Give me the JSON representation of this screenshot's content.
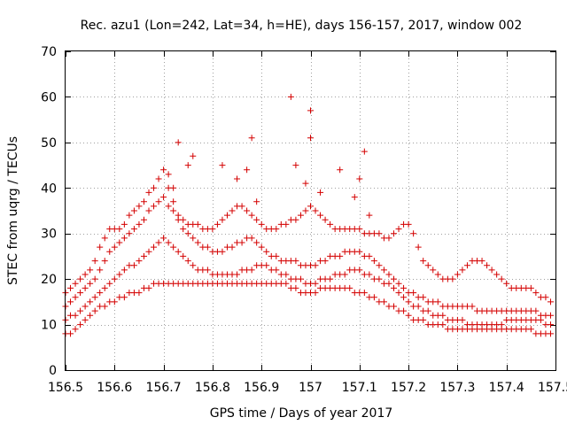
{
  "chart_data": {
    "type": "scatter",
    "title": "Rec. azu1 (Lon=242, Lat=34, h=HE), days 156-157, 2017, window 002",
    "xlabel": "GPS time / Days of year 2017",
    "ylabel": "STEC from uqrg / TECUs",
    "xlim": [
      156.5,
      157.5
    ],
    "ylim": [
      0,
      70
    ],
    "x_ticks": [
      156.5,
      156.6,
      156.7,
      156.8,
      156.9,
      157,
      157.1,
      157.2,
      157.3,
      157.4,
      157.5
    ],
    "x_tick_labels": [
      "156.5",
      "156.6",
      "156.7",
      "156.8",
      "156.9",
      "157",
      "157.1",
      "157.2",
      "157.3",
      "157.4",
      "157.5"
    ],
    "y_ticks": [
      0,
      10,
      20,
      30,
      40,
      50,
      60,
      70
    ],
    "y_tick_labels": [
      "0",
      "10",
      "20",
      "30",
      "40",
      "50",
      "60",
      "70"
    ],
    "grid": true,
    "marker": "plus",
    "color": "#d40000",
    "series": [
      {
        "x": [
          156.5,
          156.51,
          156.52,
          156.53,
          156.54,
          156.55,
          156.56,
          156.57,
          156.58,
          156.59,
          156.6,
          156.61,
          156.62,
          156.63,
          156.64,
          156.65,
          156.66,
          156.67,
          156.68,
          156.69,
          156.7,
          156.71,
          156.72,
          156.73,
          156.74,
          156.75,
          156.76,
          156.77,
          156.78,
          156.79,
          156.8,
          156.81,
          156.82,
          156.83,
          156.84,
          156.85,
          156.86,
          156.87,
          156.88,
          156.89,
          156.9,
          156.91,
          156.92,
          156.93,
          156.94,
          156.95,
          156.96,
          156.97,
          156.98,
          156.99,
          157.0,
          157.01,
          157.02,
          157.03,
          157.04,
          157.05,
          157.06,
          157.07,
          157.08,
          157.09,
          157.1,
          157.11,
          157.12,
          157.13,
          157.14,
          157.15,
          157.16,
          157.17,
          157.18,
          157.19,
          157.2,
          157.21,
          157.22,
          157.23,
          157.24,
          157.25,
          157.26,
          157.27,
          157.28,
          157.29,
          157.3,
          157.31,
          157.32,
          157.33,
          157.34,
          157.35,
          157.36,
          157.37,
          157.38,
          157.39,
          157.4,
          157.41,
          157.42,
          157.43,
          157.44,
          157.45,
          157.46,
          157.47,
          157.48,
          157.49
        ],
        "y": [
          8,
          8,
          9,
          10,
          11,
          12,
          13,
          14,
          14,
          15,
          15,
          16,
          16,
          17,
          17,
          17,
          18,
          18,
          19,
          19,
          19,
          19,
          19,
          19,
          19,
          19,
          19,
          19,
          19,
          19,
          19,
          19,
          19,
          19,
          19,
          19,
          19,
          19,
          19,
          19,
          19,
          19,
          19,
          19,
          19,
          19,
          18,
          18,
          17,
          17,
          17,
          17,
          18,
          18,
          18,
          18,
          18,
          18,
          18,
          17,
          17,
          17,
          16,
          16,
          15,
          15,
          14,
          14,
          13,
          13,
          12,
          11,
          11,
          11,
          10,
          10,
          10,
          10,
          9,
          9,
          9,
          9,
          9,
          9,
          9,
          9,
          9,
          9,
          9,
          9,
          9,
          9,
          9,
          9,
          9,
          9,
          8,
          8,
          8,
          8
        ]
      },
      {
        "x": [
          156.5,
          156.51,
          156.52,
          156.53,
          156.54,
          156.55,
          156.56,
          156.57,
          156.58,
          156.59,
          156.6,
          156.61,
          156.62,
          156.63,
          156.64,
          156.65,
          156.66,
          156.67,
          156.68,
          156.69,
          156.7,
          156.71,
          156.72,
          156.73,
          156.74,
          156.75,
          156.76,
          156.77,
          156.78,
          156.79,
          156.8,
          156.81,
          156.82,
          156.83,
          156.84,
          156.85,
          156.86,
          156.87,
          156.88,
          156.89,
          156.9,
          156.91,
          156.92,
          156.93,
          156.94,
          156.95,
          156.96,
          156.97,
          156.98,
          156.99,
          157.0,
          157.01,
          157.02,
          157.03,
          157.04,
          157.05,
          157.06,
          157.07,
          157.08,
          157.09,
          157.1,
          157.11,
          157.12,
          157.13,
          157.14,
          157.15,
          157.16,
          157.17,
          157.18,
          157.19,
          157.2,
          157.21,
          157.22,
          157.23,
          157.24,
          157.25,
          157.26,
          157.27,
          157.28,
          157.29,
          157.3,
          157.31,
          157.32,
          157.33,
          157.34,
          157.35,
          157.36,
          157.37,
          157.38,
          157.39,
          157.4,
          157.41,
          157.42,
          157.43,
          157.44,
          157.45,
          157.46,
          157.47,
          157.48,
          157.49
        ],
        "y": [
          11,
          12,
          12,
          13,
          14,
          15,
          16,
          17,
          18,
          19,
          20,
          21,
          22,
          23,
          23,
          24,
          25,
          26,
          27,
          28,
          29,
          28,
          27,
          26,
          25,
          24,
          23,
          22,
          22,
          22,
          21,
          21,
          21,
          21,
          21,
          21,
          22,
          22,
          22,
          23,
          23,
          23,
          22,
          22,
          21,
          21,
          20,
          20,
          20,
          19,
          19,
          19,
          20,
          20,
          20,
          21,
          21,
          21,
          22,
          22,
          22,
          21,
          21,
          20,
          20,
          19,
          19,
          18,
          17,
          16,
          15,
          14,
          14,
          13,
          13,
          12,
          12,
          12,
          11,
          11,
          11,
          11,
          10,
          10,
          10,
          10,
          10,
          10,
          10,
          10,
          11,
          11,
          11,
          11,
          11,
          11,
          11,
          11,
          10,
          10
        ]
      },
      {
        "x": [
          156.5,
          156.51,
          156.52,
          156.53,
          156.54,
          156.55,
          156.56,
          156.57,
          156.58,
          156.59,
          156.6,
          156.61,
          156.62,
          156.63,
          156.64,
          156.65,
          156.66,
          156.67,
          156.68,
          156.69,
          156.7,
          156.71,
          156.72,
          156.73,
          156.74,
          156.75,
          156.76,
          156.77,
          156.78,
          156.79,
          156.8,
          156.81,
          156.82,
          156.83,
          156.84,
          156.85,
          156.86,
          156.87,
          156.88,
          156.89,
          156.9,
          156.91,
          156.92,
          156.93,
          156.94,
          156.95,
          156.96,
          156.97,
          156.98,
          156.99,
          157.0,
          157.01,
          157.02,
          157.03,
          157.04,
          157.05,
          157.06,
          157.07,
          157.08,
          157.09,
          157.1,
          157.11,
          157.12,
          157.13,
          157.14,
          157.15,
          157.16,
          157.17,
          157.18,
          157.19,
          157.2,
          157.21,
          157.22,
          157.23,
          157.24,
          157.25,
          157.26,
          157.27,
          157.28,
          157.29,
          157.3,
          157.31,
          157.32,
          157.33,
          157.34,
          157.35,
          157.36,
          157.37,
          157.38,
          157.39,
          157.4,
          157.41,
          157.42,
          157.43,
          157.44,
          157.45,
          157.46,
          157.47,
          157.48,
          157.49
        ],
        "y": [
          14,
          15,
          16,
          17,
          18,
          19,
          20,
          22,
          24,
          26,
          27,
          28,
          29,
          30,
          31,
          32,
          33,
          35,
          36,
          37,
          38,
          36,
          35,
          33,
          31,
          30,
          29,
          28,
          27,
          27,
          26,
          26,
          26,
          27,
          27,
          28,
          28,
          29,
          29,
          28,
          27,
          26,
          25,
          25,
          24,
          24,
          24,
          24,
          23,
          23,
          23,
          23,
          24,
          24,
          25,
          25,
          25,
          26,
          26,
          26,
          26,
          25,
          25,
          24,
          23,
          22,
          21,
          20,
          19,
          18,
          17,
          17,
          16,
          16,
          15,
          15,
          15,
          14,
          14,
          14,
          14,
          14,
          14,
          14,
          13,
          13,
          13,
          13,
          13,
          13,
          13,
          13,
          13,
          13,
          13,
          13,
          13,
          12,
          12,
          12
        ]
      },
      {
        "x": [
          156.5,
          156.51,
          156.52,
          156.53,
          156.54,
          156.55,
          156.56,
          156.57,
          156.58,
          156.59,
          156.6,
          156.61,
          156.62,
          156.63,
          156.64,
          156.65,
          156.66,
          156.67,
          156.68,
          156.69,
          156.7,
          156.71,
          156.72,
          156.73,
          156.74,
          156.75,
          156.76,
          156.77,
          156.78,
          156.79,
          156.8,
          156.81,
          156.82,
          156.83,
          156.84,
          156.85,
          156.86,
          156.87,
          156.88,
          156.89,
          156.9,
          156.91,
          156.92,
          156.93,
          156.94,
          156.95,
          156.96,
          156.97,
          156.98,
          156.99,
          157.0,
          157.01,
          157.02,
          157.03,
          157.04,
          157.05,
          157.06,
          157.07,
          157.08,
          157.09,
          157.1,
          157.11,
          157.12,
          157.13,
          157.14,
          157.15,
          157.16,
          157.17,
          157.18,
          157.19,
          157.2,
          157.21,
          157.22,
          157.23,
          157.24,
          157.25,
          157.26,
          157.27,
          157.28,
          157.29,
          157.3,
          157.31,
          157.32,
          157.33,
          157.34,
          157.35,
          157.36,
          157.37,
          157.38,
          157.39,
          157.4,
          157.41,
          157.42,
          157.43,
          157.44,
          157.45,
          157.46,
          157.47,
          157.48,
          157.49
        ],
        "y": [
          17,
          18,
          19,
          20,
          21,
          22,
          24,
          27,
          29,
          31,
          31,
          31,
          32,
          34,
          35,
          36,
          37,
          39,
          40,
          42,
          44,
          40,
          37,
          34,
          33,
          32,
          32,
          32,
          31,
          31,
          31,
          32,
          33,
          34,
          35,
          36,
          36,
          35,
          34,
          33,
          32,
          31,
          31,
          31,
          32,
          32,
          33,
          33,
          34,
          35,
          36,
          35,
          34,
          33,
          32,
          31,
          31,
          31,
          31,
          31,
          31,
          30,
          30,
          30,
          30,
          29,
          29,
          30,
          31,
          32,
          32,
          30,
          27,
          24,
          23,
          22,
          21,
          20,
          20,
          20,
          21,
          22,
          23,
          24,
          24,
          24,
          23,
          22,
          21,
          20,
          19,
          18,
          18,
          18,
          18,
          18,
          17,
          16,
          16,
          15
        ]
      },
      {
        "x": [
          156.73,
          156.76,
          156.82,
          156.88,
          156.96,
          156.97,
          157.0,
          157.0,
          157.02,
          157.06,
          157.1,
          157.11,
          157.12,
          156.72,
          156.71,
          156.75,
          156.89,
          156.85,
          156.87,
          156.99,
          157.09
        ],
        "y": [
          50,
          47,
          45,
          51,
          60,
          45,
          57,
          51,
          39,
          44,
          42,
          48,
          34,
          40,
          43,
          45,
          37,
          42,
          44,
          41,
          38
        ]
      }
    ]
  }
}
